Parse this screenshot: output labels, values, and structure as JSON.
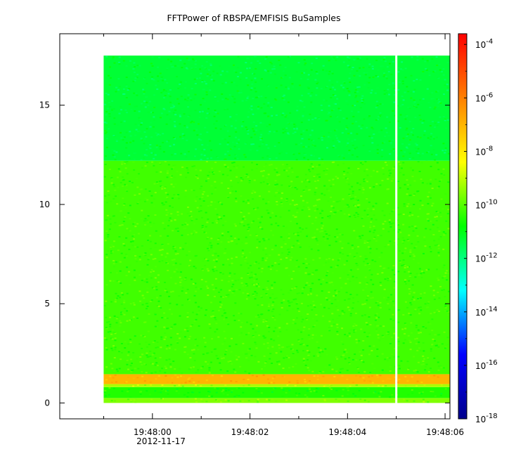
{
  "chart_data": {
    "type": "heatmap",
    "title": "FFTPower of RBSPA/EMFISIS  BuSamples",
    "xlabel": "",
    "ylabel": "",
    "x_range": [
      "19:47:58.1",
      "19:48:06.1"
    ],
    "x_ticks": [
      {
        "value": "19:48:00",
        "label": "19:48:00"
      },
      {
        "value": "19:48:02",
        "label": "19:48:02"
      },
      {
        "value": "19:48:04",
        "label": "19:48:04"
      },
      {
        "value": "19:48:06",
        "label": "19:48:06"
      }
    ],
    "x_minor_ticks": [
      "19:47:59",
      "19:48:01",
      "19:48:03",
      "19:48:05"
    ],
    "date_label": "2012-11-17",
    "ylim": [
      -0.8,
      18.6
    ],
    "y_ticks": [
      0,
      5,
      10,
      15
    ],
    "data_extent": {
      "t_start": "19:47:59.0",
      "t_end": "19:48:06.1",
      "y_min": 0,
      "y_max": 17.5
    },
    "gap": {
      "t": "19:48:05.0"
    },
    "bands": [
      {
        "y_from": 0,
        "y_to": 0.25,
        "log_power": -9.6
      },
      {
        "y_from": 0.25,
        "y_to": 0.8,
        "log_power": -10.5
      },
      {
        "y_from": 0.8,
        "y_to": 0.95,
        "log_power": -9.2
      },
      {
        "y_from": 0.95,
        "y_to": 1.45,
        "log_power": -7.0
      },
      {
        "y_from": 1.45,
        "y_to": 12.2,
        "log_power": -10.2
      },
      {
        "y_from": 12.2,
        "y_to": 17.5,
        "log_power": -11.3
      }
    ],
    "colorbar": {
      "scale": "log",
      "range_exp": [
        -18,
        -3.6
      ],
      "ticks": [
        {
          "exp": -4,
          "base": "10",
          "sup": "-4"
        },
        {
          "exp": -6,
          "base": "10",
          "sup": "-6"
        },
        {
          "exp": -8,
          "base": "10",
          "sup": "-8"
        },
        {
          "exp": -10,
          "base": "10",
          "sup": "-10"
        },
        {
          "exp": -12,
          "base": "10",
          "sup": "-12"
        },
        {
          "exp": -14,
          "base": "10",
          "sup": "-14"
        },
        {
          "exp": -16,
          "base": "10",
          "sup": "-16"
        },
        {
          "exp": -18,
          "base": "10",
          "sup": "-18"
        }
      ],
      "colors": [
        "#00008c",
        "#0000ff",
        "#00ffff",
        "#00ff00",
        "#ffff00",
        "#ff8000",
        "#ff0000"
      ]
    },
    "grid": false
  }
}
